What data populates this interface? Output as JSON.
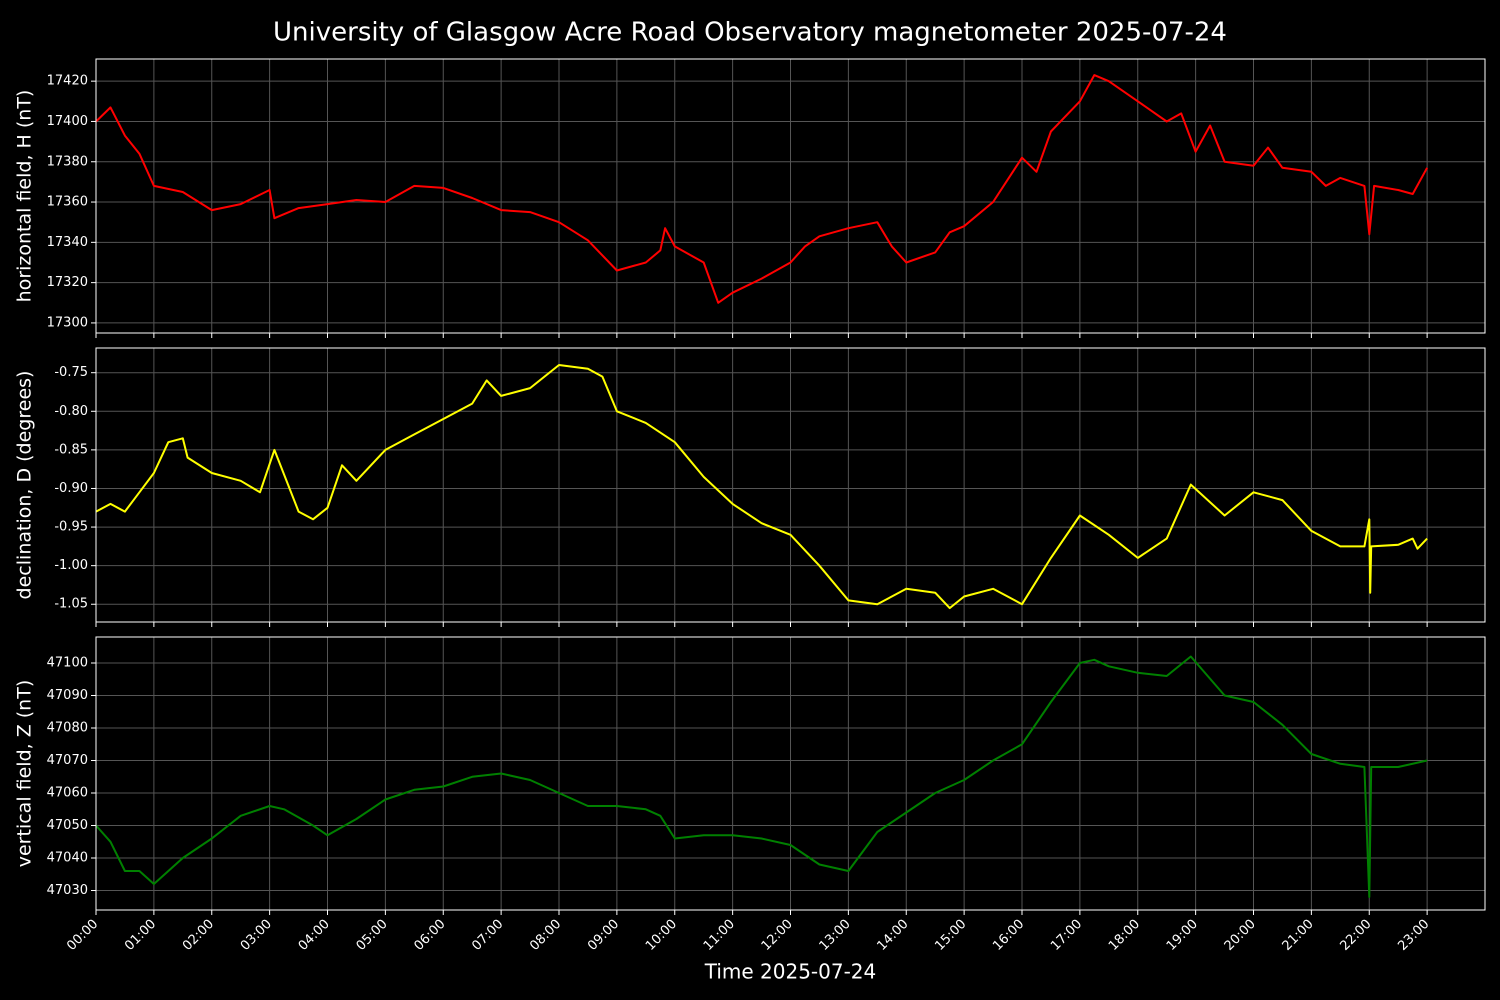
{
  "title": "University of Glasgow Acre Road Observatory magnetometer 2025-07-24",
  "chart_data": [
    {
      "type": "line",
      "ylabel": "horizontal field, H (nT)",
      "color": "#ff0000",
      "grid": true,
      "x": [
        "00:00",
        "00:15",
        "00:30",
        "00:45",
        "01:00",
        "01:30",
        "02:00",
        "02:30",
        "03:00",
        "03:05",
        "03:30",
        "04:00",
        "04:30",
        "05:00",
        "05:30",
        "06:00",
        "06:30",
        "07:00",
        "07:30",
        "08:00",
        "08:30",
        "09:00",
        "09:30",
        "09:45",
        "09:50",
        "10:00",
        "10:30",
        "10:45",
        "11:00",
        "11:30",
        "12:00",
        "12:15",
        "12:30",
        "13:00",
        "13:30",
        "13:45",
        "14:00",
        "14:30",
        "14:45",
        "15:00",
        "15:30",
        "16:00",
        "16:15",
        "16:30",
        "17:00",
        "17:15",
        "17:30",
        "18:00",
        "18:30",
        "18:45",
        "19:00",
        "19:15",
        "19:30",
        "20:00",
        "20:15",
        "20:30",
        "21:00",
        "21:15",
        "21:30",
        "21:55",
        "22:00",
        "22:05",
        "22:30",
        "22:45",
        "23:00"
      ],
      "values": [
        17400,
        17407,
        17393,
        17384,
        17368,
        17365,
        17356,
        17359,
        17366,
        17352,
        17357,
        17359,
        17361,
        17360,
        17368,
        17367,
        17362,
        17356,
        17355,
        17350,
        17341,
        17326,
        17330,
        17336,
        17347,
        17338,
        17330,
        17310,
        17315,
        17322,
        17330,
        17338,
        17343,
        17347,
        17350,
        17338,
        17330,
        17335,
        17345,
        17348,
        17360,
        17382,
        17375,
        17395,
        17410,
        17423,
        17420,
        17410,
        17400,
        17404,
        17385,
        17398,
        17380,
        17378,
        17387,
        17377,
        17375,
        17368,
        17372,
        17368,
        17344,
        17368,
        17366,
        17364,
        17377
      ],
      "xlim": [
        "00:00",
        "24:00"
      ],
      "xticks": [
        "00:00",
        "01:00",
        "02:00",
        "03:00",
        "04:00",
        "05:00",
        "06:00",
        "07:00",
        "08:00",
        "09:00",
        "10:00",
        "11:00",
        "12:00",
        "13:00",
        "14:00",
        "15:00",
        "16:00",
        "17:00",
        "18:00",
        "19:00",
        "20:00",
        "21:00",
        "22:00",
        "23:00"
      ],
      "ylim": [
        17295,
        17431
      ],
      "yticks": [
        17300,
        17320,
        17340,
        17360,
        17380,
        17400,
        17420
      ]
    },
    {
      "type": "line",
      "ylabel": "declination, D (degrees)",
      "color": "#ffff00",
      "grid": true,
      "x": [
        "00:00",
        "00:15",
        "00:30",
        "00:45",
        "01:00",
        "01:15",
        "01:30",
        "01:35",
        "02:00",
        "02:30",
        "02:50",
        "03:05",
        "03:30",
        "03:45",
        "04:00",
        "04:15",
        "04:30",
        "05:00",
        "05:30",
        "06:00",
        "06:30",
        "06:45",
        "07:00",
        "07:30",
        "08:00",
        "08:30",
        "08:45",
        "09:00",
        "09:30",
        "10:00",
        "10:30",
        "11:00",
        "11:30",
        "12:00",
        "12:30",
        "13:00",
        "13:30",
        "14:00",
        "14:30",
        "14:45",
        "15:00",
        "15:30",
        "16:00",
        "16:30",
        "17:00",
        "17:30",
        "18:00",
        "18:30",
        "18:55",
        "19:30",
        "20:00",
        "20:30",
        "21:00",
        "21:30",
        "21:55",
        "22:00",
        "22:01",
        "22:02",
        "22:30",
        "22:45",
        "22:50",
        "23:00"
      ],
      "values": [
        -0.93,
        -0.92,
        -0.93,
        -0.905,
        -0.88,
        -0.84,
        -0.835,
        -0.86,
        -0.88,
        -0.89,
        -0.905,
        -0.85,
        -0.93,
        -0.94,
        -0.925,
        -0.87,
        -0.89,
        -0.85,
        -0.83,
        -0.81,
        -0.79,
        -0.76,
        -0.78,
        -0.77,
        -0.74,
        -0.745,
        -0.755,
        -0.8,
        -0.815,
        -0.84,
        -0.885,
        -0.92,
        -0.945,
        -0.96,
        -1.0,
        -1.045,
        -1.05,
        -1.03,
        -1.035,
        -1.055,
        -1.04,
        -1.03,
        -1.05,
        -0.99,
        -0.935,
        -0.96,
        -0.99,
        -0.965,
        -0.895,
        -0.935,
        -0.905,
        -0.915,
        -0.955,
        -0.975,
        -0.975,
        -0.94,
        -1.035,
        -0.975,
        -0.973,
        -0.965,
        -0.978,
        -0.965
      ],
      "xlim": [
        "00:00",
        "24:00"
      ],
      "xticks": [
        "00:00",
        "01:00",
        "02:00",
        "03:00",
        "04:00",
        "05:00",
        "06:00",
        "07:00",
        "08:00",
        "09:00",
        "10:00",
        "11:00",
        "12:00",
        "13:00",
        "14:00",
        "15:00",
        "16:00",
        "17:00",
        "18:00",
        "19:00",
        "20:00",
        "21:00",
        "22:00",
        "23:00"
      ],
      "ylim": [
        -1.073,
        -0.718
      ],
      "yticks": [
        -1.05,
        {
          "value": -1.0,
          "label": "-1.00"
        },
        -0.95,
        {
          "value": -0.9,
          "label": "-0.90"
        },
        -0.85,
        {
          "value": -0.8,
          "label": "-0.80"
        },
        -0.75
      ]
    },
    {
      "type": "line",
      "ylabel": "vertical field, Z (nT)",
      "xlabel": "Time 2025-07-24",
      "color": "#008000",
      "grid": true,
      "x": [
        "00:00",
        "00:15",
        "00:30",
        "00:45",
        "01:00",
        "01:30",
        "02:00",
        "02:30",
        "03:00",
        "03:15",
        "03:45",
        "04:00",
        "04:30",
        "05:00",
        "05:30",
        "06:00",
        "06:30",
        "07:00",
        "07:30",
        "08:00",
        "08:30",
        "09:00",
        "09:30",
        "09:45",
        "10:00",
        "10:30",
        "11:00",
        "11:30",
        "12:00",
        "12:30",
        "13:00",
        "13:30",
        "14:00",
        "14:30",
        "15:00",
        "15:30",
        "16:00",
        "16:30",
        "17:00",
        "17:15",
        "17:30",
        "18:00",
        "18:30",
        "18:55",
        "19:30",
        "20:00",
        "20:30",
        "21:00",
        "21:30",
        "21:55",
        "22:00",
        "22:02",
        "22:30",
        "23:00"
      ],
      "values": [
        47050,
        47045,
        47036,
        47036,
        47032,
        47040,
        47046,
        47053,
        47056,
        47055,
        47050,
        47047,
        47052,
        47058,
        47061,
        47062,
        47065,
        47066,
        47064,
        47060,
        47056,
        47056,
        47055,
        47053,
        47046,
        47047,
        47047,
        47046,
        47044,
        47038,
        47036,
        47048,
        47054,
        47060,
        47064,
        47070,
        47075,
        47088,
        47100,
        47101,
        47099,
        47097,
        47096,
        47102,
        47090,
        47088,
        47081,
        47072,
        47069,
        47068,
        47028,
        47068,
        47068,
        47070
      ],
      "xlim": [
        "00:00",
        "24:00"
      ],
      "xticks": [
        "00:00",
        "01:00",
        "02:00",
        "03:00",
        "04:00",
        "05:00",
        "06:00",
        "07:00",
        "08:00",
        "09:00",
        "10:00",
        "11:00",
        "12:00",
        "13:00",
        "14:00",
        "15:00",
        "16:00",
        "17:00",
        "18:00",
        "19:00",
        "20:00",
        "21:00",
        "22:00",
        "23:00"
      ],
      "ylim": [
        47024,
        47108
      ],
      "yticks": [
        47030,
        47040,
        47050,
        47060,
        47070,
        47080,
        47090,
        47100
      ]
    }
  ]
}
